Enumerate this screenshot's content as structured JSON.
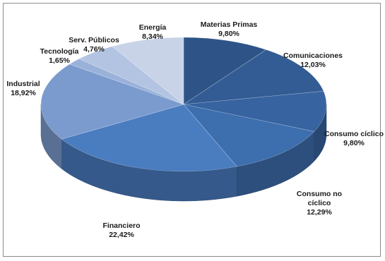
{
  "chart_data": {
    "type": "pie",
    "style": "3d-exploded-none",
    "slices": [
      {
        "name": "Materias Primas",
        "value": 9.8,
        "label_lines": [
          "Materias Primas",
          "9,80%"
        ],
        "color": "#2e5487"
      },
      {
        "name": "Comunicaciones",
        "value": 12.03,
        "label_lines": [
          "Comunicaciones",
          "12,03%"
        ],
        "color": "#325c93"
      },
      {
        "name": "Consumo cíclico",
        "value": 9.8,
        "label_lines": [
          "Consumo cíclico",
          "9,80%"
        ],
        "color": "#3763a0"
      },
      {
        "name": "Consumo no cíclico",
        "value": 12.29,
        "label_lines": [
          "Consumo no",
          "cíclico",
          "12,29%"
        ],
        "color": "#3d6eae"
      },
      {
        "name": "Financiero",
        "value": 22.42,
        "label_lines": [
          "Financiero",
          "22,42%"
        ],
        "color": "#4a7cc0"
      },
      {
        "name": "Industrial",
        "value": 18.92,
        "label_lines": [
          "Industrial",
          "18,92%"
        ],
        "color": "#7b9bce"
      },
      {
        "name": "Tecnología",
        "value": 1.65,
        "label_lines": [
          "Tecnología",
          "1,65%"
        ],
        "color": "#9ab2da"
      },
      {
        "name": "Serv. Públicos",
        "value": 4.76,
        "label_lines": [
          "Serv. Públicos",
          "4,76%"
        ],
        "color": "#b3c4e2"
      },
      {
        "name": "Energía",
        "value": 8.34,
        "label_lines": [
          "Energía",
          "8,34%"
        ],
        "color": "#c9d3e8"
      }
    ],
    "title": "",
    "legend": "none",
    "labels": "outside"
  }
}
